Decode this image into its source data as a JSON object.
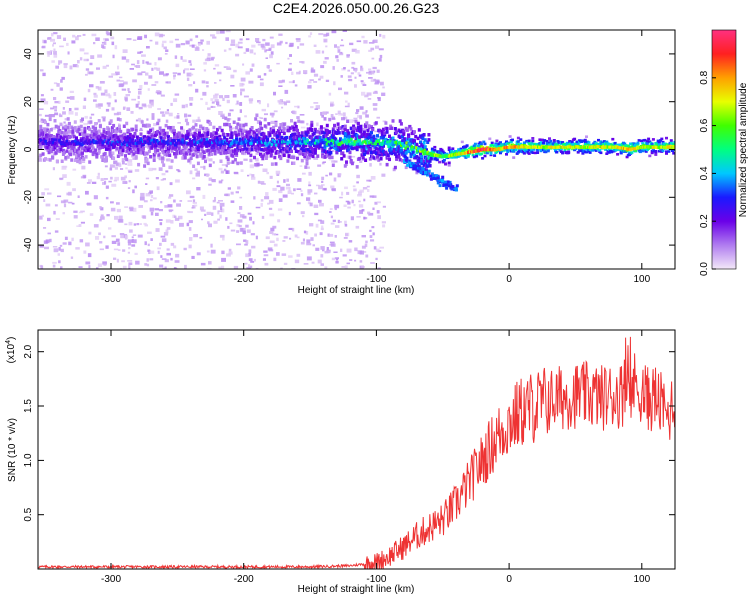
{
  "title": "C2E4.2026.050.00.26.G23",
  "chart_data": [
    {
      "type": "heatmap",
      "name": "spectrogram",
      "xlabel": "Height of straight line (km)",
      "ylabel": "Frequency (Hz)",
      "xlim": [
        -355,
        125
      ],
      "ylim": [
        -50,
        50
      ],
      "xticks": [
        -300,
        -200,
        -100,
        0,
        100
      ],
      "yticks": [
        -40,
        -20,
        0,
        20,
        40
      ],
      "grid": false,
      "colorbar": {
        "label": "Normalized spectral amplitude",
        "range": [
          0,
          1
        ],
        "ticks": [
          "0.0",
          "0.2",
          "0.4",
          "0.6",
          "0.8"
        ],
        "colormap": [
          "#f3e8f8",
          "#b07cf0",
          "#6a00e8",
          "#1a1aff",
          "#00c8ff",
          "#00ff80",
          "#40ff00",
          "#e8ff00",
          "#ffa000",
          "#ff2020",
          "#ff3080"
        ]
      },
      "ridge": [
        {
          "x": -355,
          "y": 3,
          "amp": 0.25
        },
        {
          "x": -300,
          "y": 3,
          "amp": 0.3
        },
        {
          "x": -250,
          "y": 3,
          "amp": 0.3
        },
        {
          "x": -200,
          "y": 3,
          "amp": 0.35
        },
        {
          "x": -150,
          "y": 3,
          "amp": 0.42
        },
        {
          "x": -120,
          "y": 3,
          "amp": 0.55
        },
        {
          "x": -100,
          "y": 3,
          "amp": 0.5
        },
        {
          "x": -80,
          "y": 2,
          "amp": 0.55
        },
        {
          "x": -70,
          "y": 0,
          "amp": 0.6
        },
        {
          "x": -60,
          "y": -2,
          "amp": 0.65
        },
        {
          "x": -50,
          "y": -3,
          "amp": 0.6
        },
        {
          "x": -40,
          "y": -2,
          "amp": 0.7
        },
        {
          "x": -30,
          "y": -1,
          "amp": 0.85
        },
        {
          "x": -20,
          "y": 0,
          "amp": 0.95
        },
        {
          "x": -10,
          "y": 0,
          "amp": 0.75
        },
        {
          "x": 0,
          "y": 1,
          "amp": 0.8
        },
        {
          "x": 20,
          "y": 1,
          "amp": 0.7
        },
        {
          "x": 50,
          "y": 1,
          "amp": 0.7
        },
        {
          "x": 80,
          "y": 1,
          "amp": 0.7
        },
        {
          "x": 90,
          "y": 0,
          "amp": 0.85
        },
        {
          "x": 100,
          "y": 1,
          "amp": 0.7
        },
        {
          "x": 125,
          "y": 1,
          "amp": 0.7
        }
      ]
    },
    {
      "type": "line",
      "name": "snr",
      "xlabel": "Height of straight line (km)",
      "ylabel": "SNR (10 * v/v)",
      "yscale_label": "(x10",
      "yscale_exp": "4",
      "xlim": [
        -355,
        125
      ],
      "ylim": [
        0,
        2.2
      ],
      "xticks": [
        -300,
        -200,
        -100,
        0,
        100
      ],
      "yticks": [
        "0.5",
        "1.0",
        "1.5",
        "2.0"
      ],
      "grid": false,
      "color": "#ee3333",
      "series": [
        {
          "name": "SNR",
          "x": [
            -355,
            -300,
            -250,
            -200,
            -150,
            -120,
            -100,
            -90,
            -80,
            -70,
            -60,
            -50,
            -40,
            -30,
            -20,
            -10,
            0,
            10,
            20,
            30,
            40,
            50,
            60,
            70,
            80,
            90,
            95,
            100,
            105,
            110,
            115,
            120,
            125
          ],
          "values": [
            0.02,
            0.02,
            0.02,
            0.02,
            0.02,
            0.03,
            0.06,
            0.12,
            0.2,
            0.3,
            0.38,
            0.45,
            0.6,
            0.8,
            1.0,
            1.2,
            1.35,
            1.45,
            1.5,
            1.55,
            1.58,
            1.6,
            1.6,
            1.58,
            1.6,
            1.62,
            1.7,
            1.65,
            1.55,
            1.6,
            1.5,
            1.4,
            1.6
          ]
        }
      ]
    }
  ]
}
